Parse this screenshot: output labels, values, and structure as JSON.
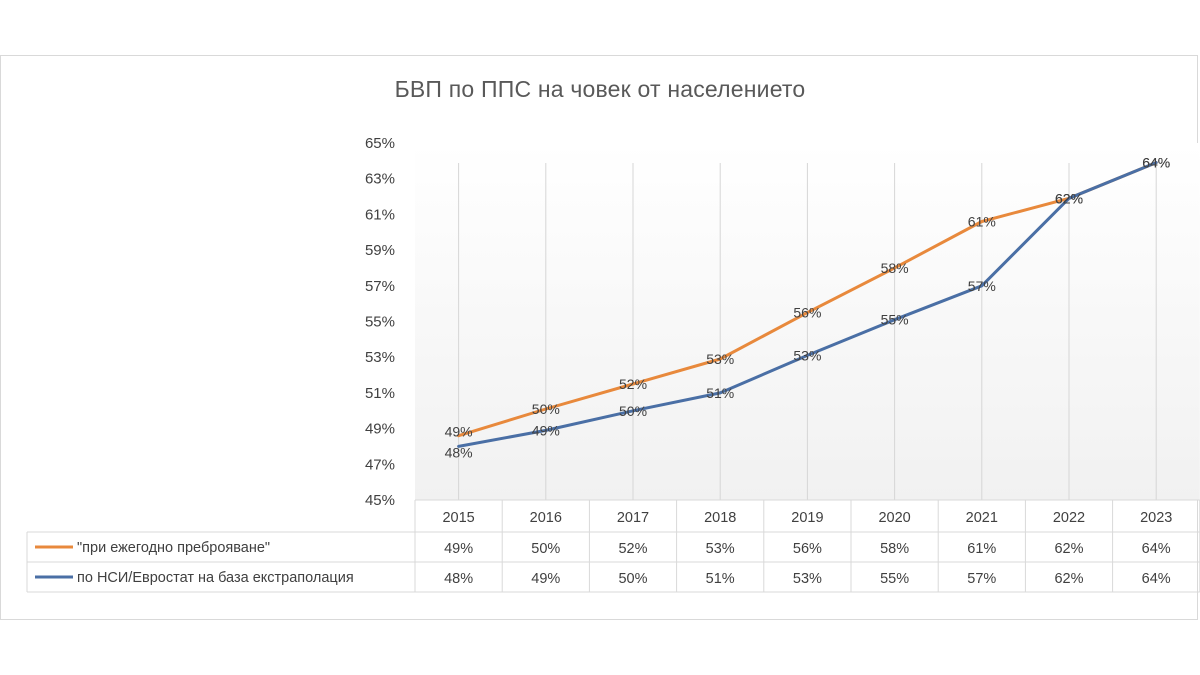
{
  "chart_data": {
    "type": "line",
    "title": "БВП по ППС на човек от населението",
    "x": [
      "2015",
      "2016",
      "2017",
      "2018",
      "2019",
      "2020",
      "2021",
      "2022",
      "2023"
    ],
    "series": [
      {
        "name": "\"при ежегодно преброяване\"",
        "color": "#e8893c",
        "values": [
          48.6,
          50.1,
          51.5,
          52.9,
          55.5,
          58.0,
          60.6,
          61.9,
          63.9
        ],
        "labels": [
          "49%",
          "50%",
          "52%",
          "53%",
          "56%",
          "58%",
          "61%",
          "62%",
          "64%"
        ]
      },
      {
        "name": "по НСИ/Евростат на база екстраполация",
        "color": "#4a6fa5",
        "values": [
          48.0,
          48.9,
          50.0,
          51.0,
          53.1,
          55.1,
          57.0,
          61.9,
          63.9
        ],
        "labels": [
          "48%",
          "49%",
          "50%",
          "51%",
          "53%",
          "55%",
          "57%",
          "62%",
          "64%"
        ]
      }
    ],
    "yticks": [
      "45%",
      "47%",
      "49%",
      "51%",
      "53%",
      "55%",
      "57%",
      "59%",
      "61%",
      "63%",
      "65%"
    ],
    "ylim": [
      45,
      65
    ],
    "legend": "data-table-below",
    "grid": "vertical"
  }
}
